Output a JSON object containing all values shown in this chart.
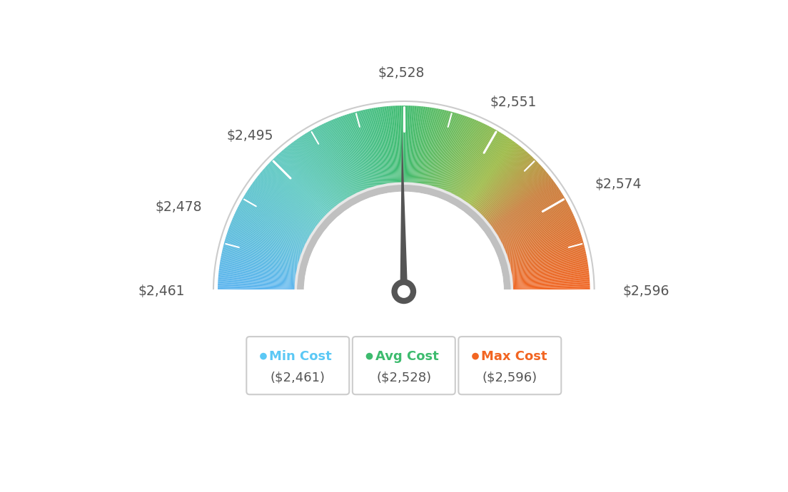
{
  "min_val": 2461,
  "max_val": 2596,
  "avg_val": 2528,
  "label_values": [
    2461,
    2478,
    2495,
    2528,
    2551,
    2574,
    2596
  ],
  "label_texts": [
    "$2,461",
    "$2,478",
    "$2,495",
    "$2,528",
    "$2,551",
    "$2,574",
    "$2,596"
  ],
  "min_label": "Min Cost",
  "avg_label": "Avg Cost",
  "max_label": "Max Cost",
  "min_color": "#5bc8f5",
  "avg_color": "#3dbb6e",
  "max_color": "#f26522",
  "min_display": "($2,461)",
  "avg_display": "($2,528)",
  "max_display": "($2,596)",
  "bg_color": "#ffffff",
  "color_stops": [
    [
      0.0,
      "#5ab4f0"
    ],
    [
      0.25,
      "#5bc8c0"
    ],
    [
      0.5,
      "#3dbb6e"
    ],
    [
      0.7,
      "#9ab840"
    ],
    [
      0.8,
      "#c87a35"
    ],
    [
      1.0,
      "#f26522"
    ]
  ]
}
